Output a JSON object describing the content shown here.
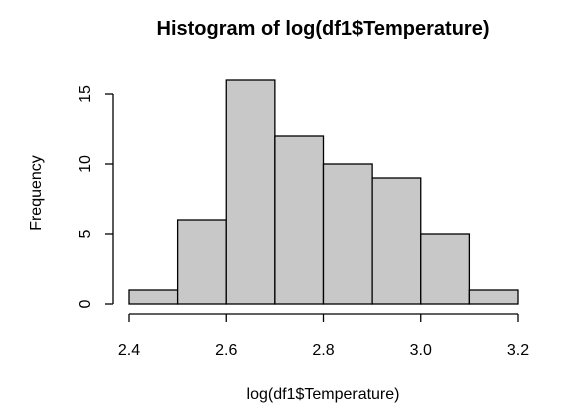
{
  "chart_data": {
    "type": "bar",
    "title": "Histogram of log(df1$Temperature)",
    "xlabel": "log(df1$Temperature)",
    "ylabel": "Frequency",
    "bins": [
      {
        "x0": 2.4,
        "x1": 2.5,
        "count": 1
      },
      {
        "x0": 2.5,
        "x1": 2.6,
        "count": 6
      },
      {
        "x0": 2.6,
        "x1": 2.7,
        "count": 16
      },
      {
        "x0": 2.7,
        "x1": 2.8,
        "count": 12
      },
      {
        "x0": 2.8,
        "x1": 2.9,
        "count": 10
      },
      {
        "x0": 2.9,
        "x1": 3.0,
        "count": 9
      },
      {
        "x0": 3.0,
        "x1": 3.1,
        "count": 5
      },
      {
        "x0": 3.1,
        "x1": 3.2,
        "count": 1
      }
    ],
    "xlim": [
      2.4,
      3.2
    ],
    "ylim": [
      0,
      16
    ],
    "x_ticks": [
      "2.4",
      "2.6",
      "2.8",
      "3.0",
      "3.2"
    ],
    "y_ticks": [
      "0",
      "5",
      "10",
      "15"
    ],
    "grid": false,
    "colors": {
      "bar_fill": "#c8c8c8",
      "bar_stroke": "#000000"
    }
  }
}
